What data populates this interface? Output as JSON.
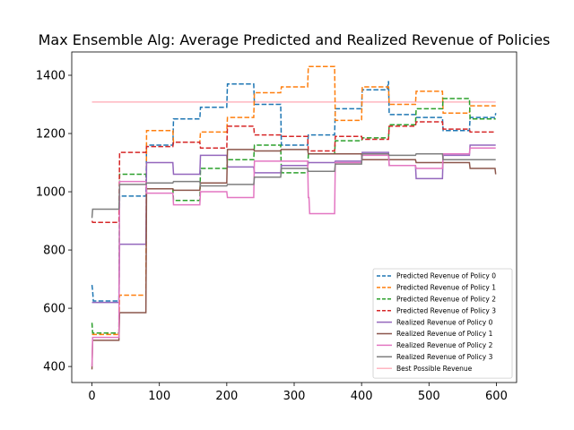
{
  "chart_data": {
    "type": "line",
    "title": "Max Ensemble Alg: Average Predicted and Realized Revenue of Policies",
    "xlabel": "",
    "ylabel": "",
    "xlim": [
      -30,
      630
    ],
    "ylim": [
      345,
      1480
    ],
    "xticks": [
      0,
      100,
      200,
      300,
      400,
      500,
      600
    ],
    "yticks": [
      400,
      600,
      800,
      1000,
      1200,
      1400
    ],
    "grid": false,
    "legend_position": "lower-right",
    "series": [
      {
        "name": "Predicted Revenue of Policy 0",
        "color": "#1f77b4",
        "style": "dashed",
        "x": [
          0,
          1,
          2,
          3,
          40,
          41,
          42,
          80,
          81,
          120,
          121,
          160,
          161,
          200,
          201,
          240,
          241,
          280,
          281,
          320,
          321,
          360,
          361,
          400,
          401,
          438,
          440,
          441,
          480,
          481,
          520,
          521,
          560,
          561,
          598,
          599
        ],
        "y": [
          680,
          660,
          625,
          625,
          625,
          985,
          985,
          985,
          1160,
          1160,
          1250,
          1250,
          1290,
          1290,
          1370,
          1370,
          1300,
          1300,
          1160,
          1160,
          1195,
          1195,
          1285,
          1285,
          1350,
          1350,
          1380,
          1265,
          1265,
          1255,
          1255,
          1210,
          1210,
          1255,
          1255,
          1270
        ]
      },
      {
        "name": "Predicted Revenue of Policy 1",
        "color": "#ff7f0e",
        "style": "dashed",
        "x": [
          0,
          1,
          2,
          40,
          41,
          42,
          80,
          81,
          120,
          121,
          160,
          161,
          200,
          201,
          240,
          241,
          280,
          281,
          320,
          321,
          360,
          361,
          400,
          401,
          440,
          441,
          480,
          481,
          520,
          521,
          560,
          561,
          599
        ],
        "y": [
          510,
          510,
          510,
          510,
          645,
          645,
          645,
          1210,
          1210,
          1170,
          1170,
          1205,
          1205,
          1255,
          1255,
          1340,
          1340,
          1360,
          1360,
          1430,
          1430,
          1245,
          1245,
          1360,
          1360,
          1300,
          1300,
          1345,
          1345,
          1270,
          1270,
          1295,
          1295
        ]
      },
      {
        "name": "Predicted Revenue of Policy 2",
        "color": "#2ca02c",
        "style": "dashed",
        "x": [
          0,
          1,
          2,
          40,
          41,
          42,
          80,
          81,
          120,
          121,
          160,
          161,
          200,
          201,
          240,
          241,
          280,
          281,
          320,
          321,
          360,
          361,
          400,
          401,
          440,
          441,
          480,
          481,
          520,
          521,
          560,
          561,
          599
        ],
        "y": [
          550,
          515,
          515,
          515,
          1060,
          1060,
          1060,
          1010,
          1010,
          970,
          970,
          1080,
          1080,
          1110,
          1110,
          1160,
          1160,
          1065,
          1065,
          1130,
          1130,
          1175,
          1175,
          1185,
          1185,
          1230,
          1230,
          1285,
          1285,
          1320,
          1320,
          1250,
          1250
        ]
      },
      {
        "name": "Predicted Revenue of Policy 3",
        "color": "#d62728",
        "style": "dashed",
        "x": [
          0,
          1,
          2,
          40,
          41,
          42,
          80,
          81,
          120,
          121,
          160,
          161,
          200,
          201,
          240,
          241,
          280,
          281,
          320,
          321,
          360,
          361,
          400,
          401,
          440,
          441,
          480,
          481,
          520,
          521,
          560,
          561,
          599
        ],
        "y": [
          900,
          895,
          895,
          895,
          1135,
          1135,
          1135,
          1155,
          1155,
          1170,
          1170,
          1150,
          1150,
          1225,
          1225,
          1195,
          1195,
          1190,
          1190,
          1140,
          1140,
          1190,
          1190,
          1180,
          1180,
          1225,
          1225,
          1240,
          1240,
          1215,
          1215,
          1205,
          1205
        ]
      },
      {
        "name": "Realized Revenue of Policy 0",
        "color": "#9467bd",
        "style": "solid",
        "x": [
          0,
          1,
          2,
          40,
          41,
          42,
          80,
          81,
          120,
          121,
          160,
          161,
          200,
          201,
          240,
          241,
          280,
          281,
          320,
          321,
          360,
          361,
          400,
          401,
          440,
          441,
          480,
          481,
          520,
          521,
          560,
          561,
          599
        ],
        "y": [
          620,
          620,
          620,
          620,
          820,
          820,
          820,
          1100,
          1100,
          1060,
          1060,
          1125,
          1125,
          1085,
          1085,
          1065,
          1065,
          1090,
          1090,
          1100,
          1100,
          1105,
          1105,
          1135,
          1135,
          1090,
          1090,
          1045,
          1045,
          1125,
          1125,
          1160,
          1160
        ]
      },
      {
        "name": "Realized Revenue of Policy 1",
        "color": "#8c564b",
        "style": "solid",
        "x": [
          0,
          1,
          2,
          40,
          41,
          42,
          80,
          81,
          120,
          121,
          160,
          161,
          200,
          201,
          240,
          241,
          280,
          281,
          320,
          321,
          360,
          361,
          400,
          401,
          440,
          441,
          480,
          481,
          520,
          521,
          560,
          561,
          598,
          599
        ],
        "y": [
          390,
          490,
          490,
          490,
          585,
          585,
          585,
          1010,
          1010,
          1005,
          1005,
          1030,
          1030,
          1145,
          1145,
          1140,
          1140,
          1145,
          1145,
          1130,
          1130,
          1130,
          1130,
          1110,
          1110,
          1110,
          1110,
          1100,
          1100,
          1100,
          1100,
          1080,
          1080,
          1060
        ]
      },
      {
        "name": "Realized Revenue of Policy 2",
        "color": "#e377c2",
        "style": "solid",
        "x": [
          0,
          1,
          2,
          40,
          41,
          42,
          80,
          81,
          120,
          121,
          160,
          161,
          200,
          201,
          240,
          241,
          280,
          281,
          320,
          321,
          322,
          323,
          360,
          361,
          400,
          401,
          440,
          441,
          480,
          481,
          520,
          521,
          560,
          561,
          599
        ],
        "y": [
          400,
          500,
          500,
          500,
          1035,
          1035,
          1035,
          995,
          995,
          955,
          955,
          1000,
          1000,
          980,
          980,
          1105,
          1105,
          1105,
          1105,
          980,
          980,
          925,
          925,
          1100,
          1100,
          1125,
          1125,
          1090,
          1090,
          1080,
          1080,
          1130,
          1130,
          1150,
          1150
        ]
      },
      {
        "name": "Realized Revenue of Policy 3",
        "color": "#7f7f7f",
        "style": "solid",
        "x": [
          0,
          1,
          2,
          40,
          41,
          42,
          80,
          81,
          120,
          121,
          160,
          161,
          200,
          201,
          240,
          241,
          280,
          281,
          320,
          321,
          360,
          361,
          400,
          401,
          440,
          441,
          480,
          481,
          520,
          521,
          560,
          561,
          599
        ],
        "y": [
          910,
          940,
          940,
          940,
          1025,
          1025,
          1025,
          1030,
          1030,
          1035,
          1035,
          1020,
          1020,
          1025,
          1025,
          1050,
          1050,
          1080,
          1080,
          1070,
          1070,
          1095,
          1095,
          1130,
          1130,
          1125,
          1125,
          1130,
          1130,
          1110,
          1110,
          1110,
          1110
        ]
      },
      {
        "name": "Best Possible Revenue",
        "color": "#ffb6c1",
        "style": "solid",
        "x": [
          0,
          599
        ],
        "y": [
          1308,
          1308
        ]
      }
    ]
  }
}
